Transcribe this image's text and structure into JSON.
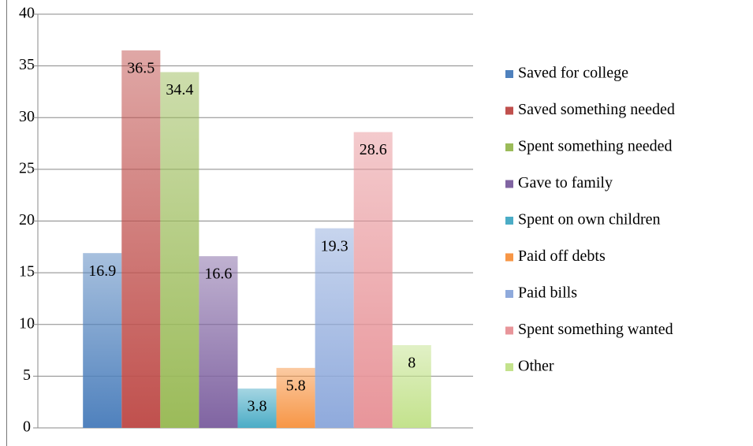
{
  "chart_data": {
    "type": "bar",
    "categories": [
      null
    ],
    "series": [
      {
        "name": "Saved for college",
        "color": "#4f81bd",
        "values": [
          16.9
        ]
      },
      {
        "name": "Saved something needed",
        "color": "#c0504d",
        "values": [
          36.5
        ]
      },
      {
        "name": "Spent something needed",
        "color": "#9bbb59",
        "values": [
          34.4
        ]
      },
      {
        "name": "Gave to family",
        "color": "#8064a2",
        "values": [
          16.6
        ]
      },
      {
        "name": "Spent on own children",
        "color": "#4bacc6",
        "values": [
          3.8
        ]
      },
      {
        "name": "Paid off debts",
        "color": "#f79646",
        "values": [
          5.8
        ]
      },
      {
        "name": "Paid bills",
        "color": "#8faadc",
        "values": [
          19.3
        ]
      },
      {
        "name": "Spent something wanted",
        "color": "#e8959a",
        "values": [
          28.6
        ]
      },
      {
        "name": "Other",
        "color": "#c3e28c",
        "values": [
          8
        ]
      }
    ],
    "ylim": [
      0,
      40
    ],
    "yticks": [
      0,
      5,
      10,
      15,
      20,
      25,
      30,
      35,
      40
    ],
    "grid": true,
    "legend": "right",
    "data_labels": true
  }
}
